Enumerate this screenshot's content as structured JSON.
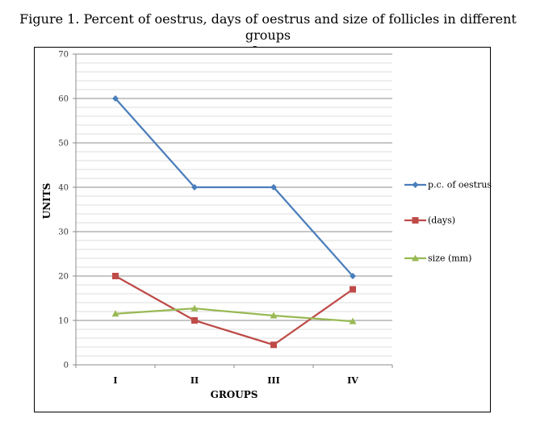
{
  "figure": {
    "title_line1": "Figure 1. Percent of  oestrus, days of  oestrus and size of  follicles in different groups",
    "title_line2": "of  cows"
  },
  "chart_data": {
    "type": "line",
    "categories": [
      "I",
      "II",
      "III",
      "IV"
    ],
    "series": [
      {
        "name": "p.c. of oestrus",
        "values": [
          60,
          40,
          40,
          20
        ],
        "color": "#4a7ebb",
        "marker": "diamond"
      },
      {
        "name": "(days)",
        "values": [
          20,
          10,
          4.5,
          17
        ],
        "color": "#be4b48",
        "marker": "square"
      },
      {
        "name": "size (mm)",
        "values": [
          11.5,
          12.7,
          11.1,
          9.8
        ],
        "color": "#98b954",
        "marker": "triangle"
      }
    ],
    "xlabel": "GROUPS",
    "ylabel": "UNITS",
    "ylim": [
      0,
      70
    ],
    "yticks": [
      0,
      10,
      20,
      30,
      40,
      50,
      60,
      70
    ],
    "grid": "horizontal",
    "legend_position": "right"
  }
}
